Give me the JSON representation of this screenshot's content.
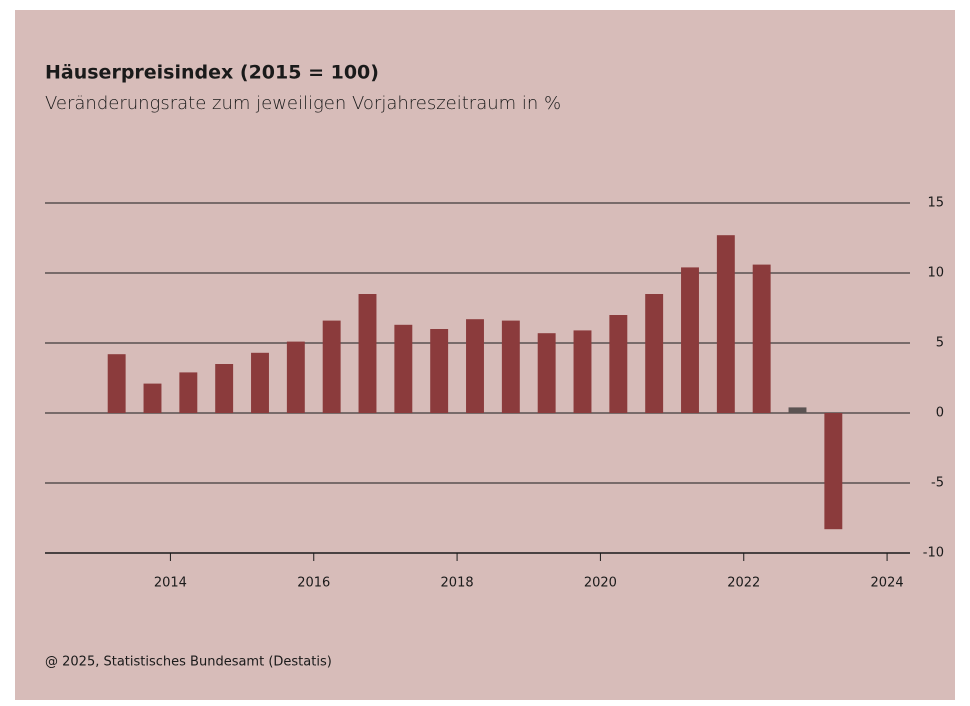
{
  "chart_data": {
    "type": "bar",
    "title": "Häuserpreisindex (2015 = 100)",
    "subtitle": "Veränderungsrate zum jeweiligen Vorjahreszeitraum in %",
    "source": "@ 2025, Statistisches Bundesamt (Destatis)",
    "x": [
      2013.25,
      2013.75,
      2014.25,
      2014.75,
      2015.25,
      2015.75,
      2016.25,
      2016.75,
      2017.25,
      2017.75,
      2018.25,
      2018.75,
      2019.25,
      2019.75,
      2020.25,
      2020.75,
      2021.25,
      2021.75,
      2022.25,
      2022.75,
      2023.25
    ],
    "values": [
      4.2,
      2.1,
      2.9,
      3.5,
      4.3,
      5.1,
      6.6,
      8.5,
      6.3,
      6.0,
      6.7,
      6.6,
      5.7,
      5.9,
      7.0,
      8.5,
      10.4,
      12.7,
      10.6,
      0.4,
      -8.3
    ],
    "colors": [
      "#8b3b3c",
      "#8b3b3c",
      "#8b3b3c",
      "#8b3b3c",
      "#8b3b3c",
      "#8b3b3c",
      "#8b3b3c",
      "#8b3b3c",
      "#8b3b3c",
      "#8b3b3c",
      "#8b3b3c",
      "#8b3b3c",
      "#8b3b3c",
      "#8b3b3c",
      "#8b3b3c",
      "#8b3b3c",
      "#8b3b3c",
      "#8b3b3c",
      "#8b3b3c",
      "#5b5352",
      "#8b3b3c"
    ],
    "xlim": [
      2012.25,
      2024.25
    ],
    "xticks": [
      2014,
      2016,
      2018,
      2020,
      2022,
      2024
    ],
    "ylim": [
      -10,
      15
    ],
    "yticks": [
      15,
      10,
      5,
      0,
      -5,
      -10
    ],
    "grid": true
  }
}
